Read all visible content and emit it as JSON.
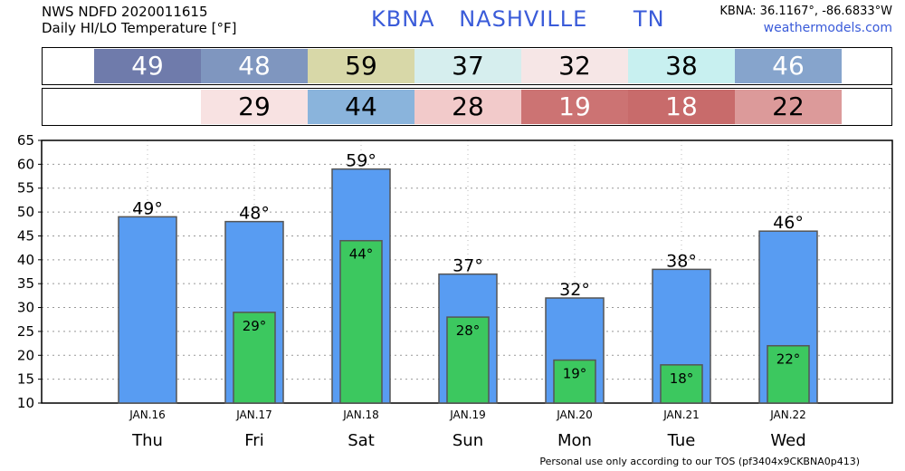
{
  "header": {
    "line1": "NWS NDFD 2020011615",
    "line2": "Daily HI/LO Temperature [°F]",
    "station_code": "KBNA",
    "station_city": "NASHVILLE",
    "station_state": "TN",
    "coords": "KBNA: 36.1167°, -86.6833°W",
    "site": "weathermodels.com"
  },
  "hi_band": [
    {
      "value": "49",
      "color": "#6f7bab",
      "text_color": "#ffffff"
    },
    {
      "value": "48",
      "color": "#7f96bf",
      "text_color": "#ffffff"
    },
    {
      "value": "59",
      "color": "#d8d8a8",
      "text_color": "#000000"
    },
    {
      "value": "37",
      "color": "#d6eeee",
      "text_color": "#000000"
    },
    {
      "value": "32",
      "color": "#f6e6e6",
      "text_color": "#000000"
    },
    {
      "value": "38",
      "color": "#c8f0f0",
      "text_color": "#000000"
    },
    {
      "value": "46",
      "color": "#86a4cc",
      "text_color": "#ffffff"
    }
  ],
  "lo_band": [
    {
      "value": "",
      "color": "#ffffff",
      "text_color": "#000000"
    },
    {
      "value": "29",
      "color": "#f8e2e2",
      "text_color": "#000000"
    },
    {
      "value": "44",
      "color": "#8ab4dc",
      "text_color": "#000000"
    },
    {
      "value": "28",
      "color": "#f2caca",
      "text_color": "#000000"
    },
    {
      "value": "19",
      "color": "#cc7373",
      "text_color": "#ffffff"
    },
    {
      "value": "18",
      "color": "#c86b6b",
      "text_color": "#ffffff"
    },
    {
      "value": "22",
      "color": "#dc9a9a",
      "text_color": "#000000"
    }
  ],
  "chart_data": {
    "type": "bar",
    "categories": [
      "JAN.16",
      "JAN.17",
      "JAN.18",
      "JAN.19",
      "JAN.20",
      "JAN.21",
      "JAN.22"
    ],
    "weekdays": [
      "Thu",
      "Fri",
      "Sat",
      "Sun",
      "Mon",
      "Tue",
      "Wed"
    ],
    "series": [
      {
        "values": [
          49,
          48,
          59,
          37,
          32,
          38,
          46
        ],
        "color": "#589cf2"
      },
      {
        "values": [
          null,
          29,
          44,
          28,
          19,
          18,
          22
        ],
        "color": "#3cc85f"
      }
    ],
    "ylim": [
      10,
      65
    ],
    "yticks": [
      10,
      15,
      20,
      25,
      30,
      35,
      40,
      45,
      50,
      55,
      60,
      65
    ],
    "grid": true,
    "value_label_suffix": "°"
  },
  "footer": "Personal use only according to our TOS (pf3404x9CKBNA0p413)"
}
